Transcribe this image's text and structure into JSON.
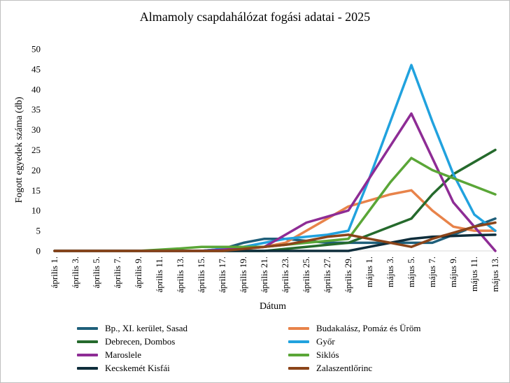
{
  "chart_data": {
    "type": "line",
    "title": "Almamoly csapdahálózat fogási adatai - 2025",
    "xlabel": "Dátum",
    "ylabel": "Fogott egyedek száma (db)",
    "ylim": [
      0,
      50
    ],
    "yticks": [
      0,
      5,
      10,
      15,
      20,
      25,
      30,
      35,
      40,
      45,
      50
    ],
    "grid": false,
    "legend_position": "bottom",
    "categories": [
      "április 1.",
      "április 3.",
      "április 5.",
      "április 7.",
      "április 9.",
      "április 11.",
      "április 13.",
      "április 15.",
      "április 17.",
      "április 19.",
      "április 21.",
      "április 23.",
      "április 25.",
      "április 27.",
      "április 29.",
      "május 1.",
      "május 3.",
      "május 5.",
      "május 7.",
      "május 9.",
      "május 11.",
      "május 13."
    ],
    "series": [
      {
        "name": "Bp., XI. kerület, Sasad",
        "color": "#1f5f7a",
        "points": [
          [
            0,
            0
          ],
          [
            1,
            0
          ],
          [
            2,
            0
          ],
          [
            3,
            0
          ],
          [
            4,
            0
          ],
          [
            5,
            0
          ],
          [
            6,
            0
          ],
          [
            7,
            0
          ],
          [
            8,
            0.5
          ],
          [
            9,
            2
          ],
          [
            10,
            3
          ],
          [
            11,
            3
          ],
          [
            12,
            2.5
          ],
          [
            13,
            2
          ],
          [
            14,
            2
          ],
          [
            15,
            2
          ],
          [
            16,
            2
          ],
          [
            17,
            2
          ],
          [
            18,
            2
          ],
          [
            19,
            4
          ],
          [
            20,
            6
          ],
          [
            21,
            8
          ]
        ]
      },
      {
        "name": "Budakalász, Pomáz és Üröm",
        "color": "#e8834a",
        "points": [
          [
            0,
            0
          ],
          [
            1,
            0
          ],
          [
            2,
            0
          ],
          [
            3,
            0
          ],
          [
            4,
            0
          ],
          [
            5,
            0
          ],
          [
            6,
            0
          ],
          [
            7,
            0
          ],
          [
            8,
            0
          ],
          [
            9,
            0.5
          ],
          [
            10,
            1
          ],
          [
            11,
            2
          ],
          [
            12,
            5
          ],
          [
            13,
            8
          ],
          [
            14,
            11
          ],
          [
            15,
            12.5
          ],
          [
            16,
            14
          ],
          [
            17,
            15
          ],
          [
            18,
            10
          ],
          [
            19,
            6
          ],
          [
            20,
            5
          ],
          [
            21,
            5
          ]
        ]
      },
      {
        "name": "Debrecen, Dombos",
        "color": "#256a2c",
        "points": [
          [
            0,
            0
          ],
          [
            1,
            0
          ],
          [
            2,
            0
          ],
          [
            3,
            0
          ],
          [
            4,
            0
          ],
          [
            5,
            0
          ],
          [
            6,
            0
          ],
          [
            7,
            0
          ],
          [
            8,
            0
          ],
          [
            9,
            0
          ],
          [
            10,
            0
          ],
          [
            11,
            0.5
          ],
          [
            12,
            1
          ],
          [
            13,
            1.5
          ],
          [
            14,
            2
          ],
          [
            15,
            4
          ],
          [
            16,
            6
          ],
          [
            17,
            8
          ],
          [
            18,
            14
          ],
          [
            19,
            19
          ],
          [
            20,
            22
          ],
          [
            21,
            25
          ]
        ]
      },
      {
        "name": "Győr",
        "color": "#21a2de",
        "points": [
          [
            0,
            0
          ],
          [
            1,
            0
          ],
          [
            2,
            0
          ],
          [
            3,
            0
          ],
          [
            4,
            0
          ],
          [
            5,
            0
          ],
          [
            6,
            0
          ],
          [
            7,
            0
          ],
          [
            8,
            0.5
          ],
          [
            9,
            1
          ],
          [
            10,
            2
          ],
          [
            11,
            3
          ],
          [
            12,
            3.5
          ],
          [
            13,
            4
          ],
          [
            14,
            5
          ],
          [
            15,
            18
          ],
          [
            16,
            32
          ],
          [
            17,
            46
          ],
          [
            18,
            32
          ],
          [
            19,
            19
          ],
          [
            20,
            9
          ],
          [
            21,
            5
          ]
        ]
      },
      {
        "name": "Maroslele",
        "color": "#8e2c95",
        "points": [
          [
            0,
            0
          ],
          [
            1,
            0
          ],
          [
            2,
            0
          ],
          [
            3,
            0
          ],
          [
            4,
            0
          ],
          [
            5,
            0
          ],
          [
            6,
            0
          ],
          [
            7,
            0
          ],
          [
            8,
            0.3
          ],
          [
            9,
            0.6
          ],
          [
            10,
            1
          ],
          [
            11,
            4
          ],
          [
            12,
            7
          ],
          [
            13,
            8.5
          ],
          [
            14,
            10
          ],
          [
            15,
            18
          ],
          [
            16,
            26
          ],
          [
            17,
            34
          ],
          [
            18,
            23
          ],
          [
            19,
            12
          ],
          [
            20,
            6
          ],
          [
            21,
            0
          ]
        ]
      },
      {
        "name": "Siklós",
        "color": "#5aa637",
        "points": [
          [
            0,
            0
          ],
          [
            1,
            0
          ],
          [
            2,
            0
          ],
          [
            3,
            0
          ],
          [
            4,
            0
          ],
          [
            5,
            0.3
          ],
          [
            6,
            0.6
          ],
          [
            7,
            1
          ],
          [
            8,
            1
          ],
          [
            9,
            1
          ],
          [
            10,
            1
          ],
          [
            11,
            1.5
          ],
          [
            12,
            2
          ],
          [
            13,
            2.5
          ],
          [
            14,
            3
          ],
          [
            15,
            10
          ],
          [
            16,
            17
          ],
          [
            17,
            23
          ],
          [
            18,
            20
          ],
          [
            19,
            18
          ],
          [
            20,
            16
          ],
          [
            21,
            14
          ]
        ]
      },
      {
        "name": "Kecskemét Kisfái",
        "color": "#0e2d3b",
        "points": [
          [
            0,
            0
          ],
          [
            1,
            0
          ],
          [
            2,
            0
          ],
          [
            3,
            0
          ],
          [
            4,
            0
          ],
          [
            5,
            0
          ],
          [
            6,
            0
          ],
          [
            7,
            0
          ],
          [
            8,
            0
          ],
          [
            9,
            0
          ],
          [
            10,
            0
          ],
          [
            11,
            0
          ],
          [
            12,
            0
          ],
          [
            13,
            0
          ],
          [
            14,
            0
          ],
          [
            15,
            1
          ],
          [
            16,
            2
          ],
          [
            17,
            3
          ],
          [
            18,
            3.5
          ],
          [
            19,
            3.7
          ],
          [
            20,
            3.9
          ],
          [
            21,
            4
          ]
        ]
      },
      {
        "name": "Zalaszentlőrinc",
        "color": "#8b4419",
        "points": [
          [
            0,
            0
          ],
          [
            1,
            0
          ],
          [
            2,
            0
          ],
          [
            3,
            0
          ],
          [
            4,
            0
          ],
          [
            5,
            0
          ],
          [
            6,
            0
          ],
          [
            7,
            0
          ],
          [
            8,
            0
          ],
          [
            9,
            0.5
          ],
          [
            10,
            1
          ],
          [
            11,
            1.5
          ],
          [
            12,
            2.5
          ],
          [
            13,
            3.5
          ],
          [
            14,
            4
          ],
          [
            15,
            3
          ],
          [
            16,
            2
          ],
          [
            17,
            1
          ],
          [
            18,
            3
          ],
          [
            19,
            4.5
          ],
          [
            20,
            6
          ],
          [
            21,
            7
          ]
        ]
      }
    ]
  }
}
